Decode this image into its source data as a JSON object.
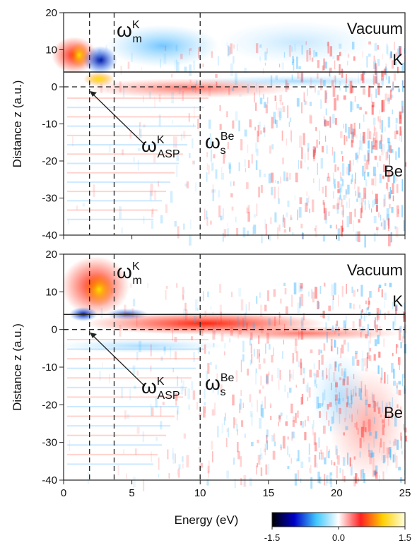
{
  "chart_data": [
    {
      "type": "heatmap",
      "ylabel": "Distance z (a.u.)",
      "xlim": [
        0,
        25
      ],
      "xticks": [
        0,
        5,
        10,
        15,
        20,
        25
      ],
      "xtick_labels": false,
      "ylim": [
        -40,
        20
      ],
      "yticks": [
        20,
        10,
        0,
        -10,
        -20,
        -30,
        -40
      ],
      "vlines": [
        1.9,
        3.7,
        10
      ],
      "hlines": [
        0
      ],
      "surface_line": 4,
      "region_labels": [
        "Vacuum",
        "K",
        "Be"
      ],
      "annotations": [
        {
          "base": "ω",
          "sup": "K",
          "sub": "m"
        },
        {
          "base": "ω",
          "sup": "K",
          "sub": "ASP"
        },
        {
          "base": "ω",
          "sup": "Be",
          "sub": "s"
        }
      ]
    },
    {
      "type": "heatmap",
      "ylabel": "Distance z (a.u.)",
      "xlabel": "Energy (eV)",
      "xlim": [
        0,
        25
      ],
      "xticks": [
        0,
        5,
        10,
        15,
        20,
        25
      ],
      "xtick_labels": true,
      "ylim": [
        -40,
        20
      ],
      "yticks": [
        20,
        10,
        0,
        -10,
        -20,
        -30,
        -40
      ],
      "vlines": [
        1.9,
        3.7,
        10
      ],
      "hlines": [
        0
      ],
      "surface_line": 4,
      "region_labels": [
        "Vacuum",
        "K",
        "Be"
      ],
      "annotations": [
        {
          "base": "ω",
          "sup": "K",
          "sub": "m"
        },
        {
          "base": "ω",
          "sup": "K",
          "sub": "ASP"
        },
        {
          "base": "ω",
          "sup": "Be",
          "sub": "s"
        }
      ],
      "colorbar": {
        "lim": [
          -1.5,
          1.5
        ],
        "ticks": [
          -1.5,
          {
            "value": 0,
            "label": "0.0"
          },
          1.5
        ],
        "colors": [
          "#000000",
          "#0000c8",
          "#40c8ff",
          "#ffffff",
          "#ff2020",
          "#ffd000",
          "#ffffe0"
        ]
      }
    }
  ]
}
